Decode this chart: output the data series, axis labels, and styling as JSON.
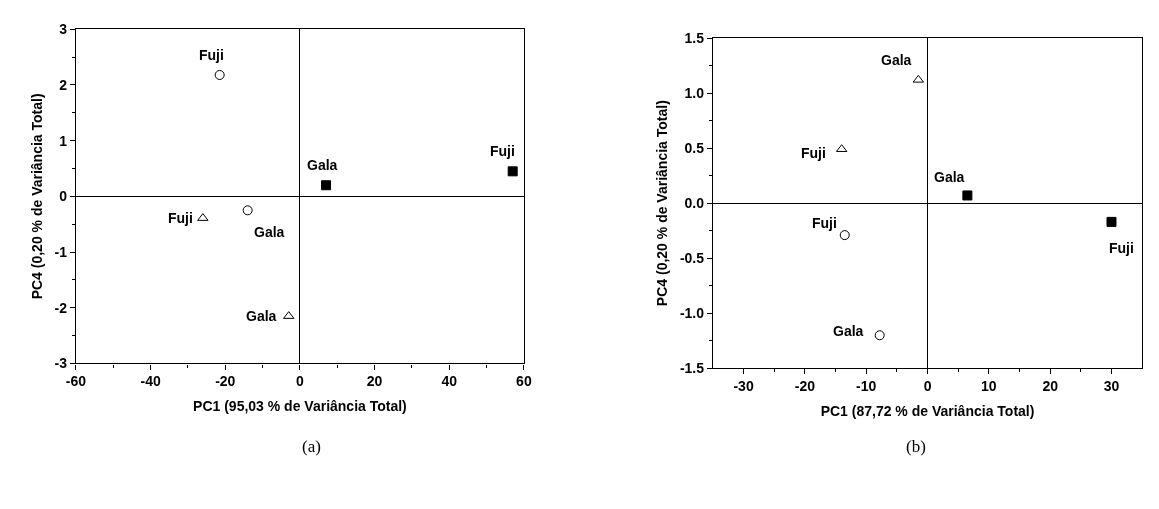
{
  "chart_data": [
    {
      "type": "scatter",
      "xlabel": "PC1 (95,03 % de Variância Total)",
      "ylabel": "PC4 (0,20 % de Variância Total)",
      "xlim": [
        -60,
        60
      ],
      "xticks": [
        -60,
        -40,
        -20,
        0,
        20,
        40,
        60
      ],
      "ylim": [
        -3,
        3
      ],
      "yticks": [
        -3,
        -2,
        -1,
        0,
        1,
        2,
        3
      ],
      "series": [
        {
          "color": "#000000",
          "marker": "circle",
          "x": [
            -21.5,
            -14
          ],
          "values": [
            2.18,
            -0.25
          ]
        },
        {
          "color": "#000000",
          "marker": "triangle",
          "x": [
            -26,
            -3
          ],
          "values": [
            -0.39,
            -2.15
          ]
        },
        {
          "color": "#000000",
          "marker": "square",
          "x": [
            7,
            57
          ],
          "values": [
            0.2,
            0.45
          ]
        }
      ],
      "annotations": [
        {
          "text": "Fuji",
          "x": -21.5,
          "y": 2.18
        },
        {
          "text": "Gala",
          "x": -14,
          "y": -0.25
        },
        {
          "text": "Fuji",
          "x": -26,
          "y": -0.39
        },
        {
          "text": "Gala",
          "x": -3,
          "y": -2.15
        },
        {
          "text": "Gala",
          "x": 7,
          "y": 0.2
        },
        {
          "text": "Fuji",
          "x": 57,
          "y": 0.45
        },
        "(a)"
      ]
    },
    {
      "type": "scatter",
      "xlabel": "PC1 (87,72 % de Variância Total)",
      "ylabel": "PC4 (0,20 % de Variância Total)",
      "xlim": [
        -35,
        35
      ],
      "xticks": [
        -30,
        -20,
        -10,
        0,
        10,
        20,
        30
      ],
      "ylim": [
        -1.5,
        1.5
      ],
      "yticks": [
        {
          "value": -1.5,
          "label": "-1.5"
        },
        {
          "value": -1.0,
          "label": "-1.0"
        },
        {
          "value": -0.5,
          "label": "-0.5"
        },
        {
          "value": 0,
          "label": "0.0"
        },
        {
          "value": 0.5,
          "label": "0.5"
        },
        {
          "value": 1.0,
          "label": "1.0"
        },
        {
          "value": 1.5,
          "label": "1.5"
        }
      ],
      "series": [
        {
          "color": "#000000",
          "marker": "triangle",
          "x": [
            -14,
            -1.5
          ],
          "values": [
            0.49,
            1.12
          ]
        },
        {
          "color": "#000000",
          "marker": "square",
          "x": [
            6.5,
            30
          ],
          "values": [
            0.07,
            -0.17
          ]
        },
        {
          "color": "#000000",
          "marker": "circle",
          "x": [
            -13.5,
            -7.8
          ],
          "values": [
            -0.29,
            -1.2
          ]
        }
      ],
      "annotations": [
        {
          "text": "Fuji",
          "x": -14,
          "y": 0.49
        },
        {
          "text": "Gala",
          "x": -1.5,
          "y": 1.12
        },
        {
          "text": "Gala",
          "x": 6.5,
          "y": 0.07
        },
        {
          "text": "Fuji",
          "x": 30,
          "y": -0.17
        },
        {
          "text": "Fuji",
          "x": -13.5,
          "y": -0.29
        },
        {
          "text": "Gala",
          "x": -7.8,
          "y": -1.2
        },
        "(b)"
      ]
    }
  ]
}
